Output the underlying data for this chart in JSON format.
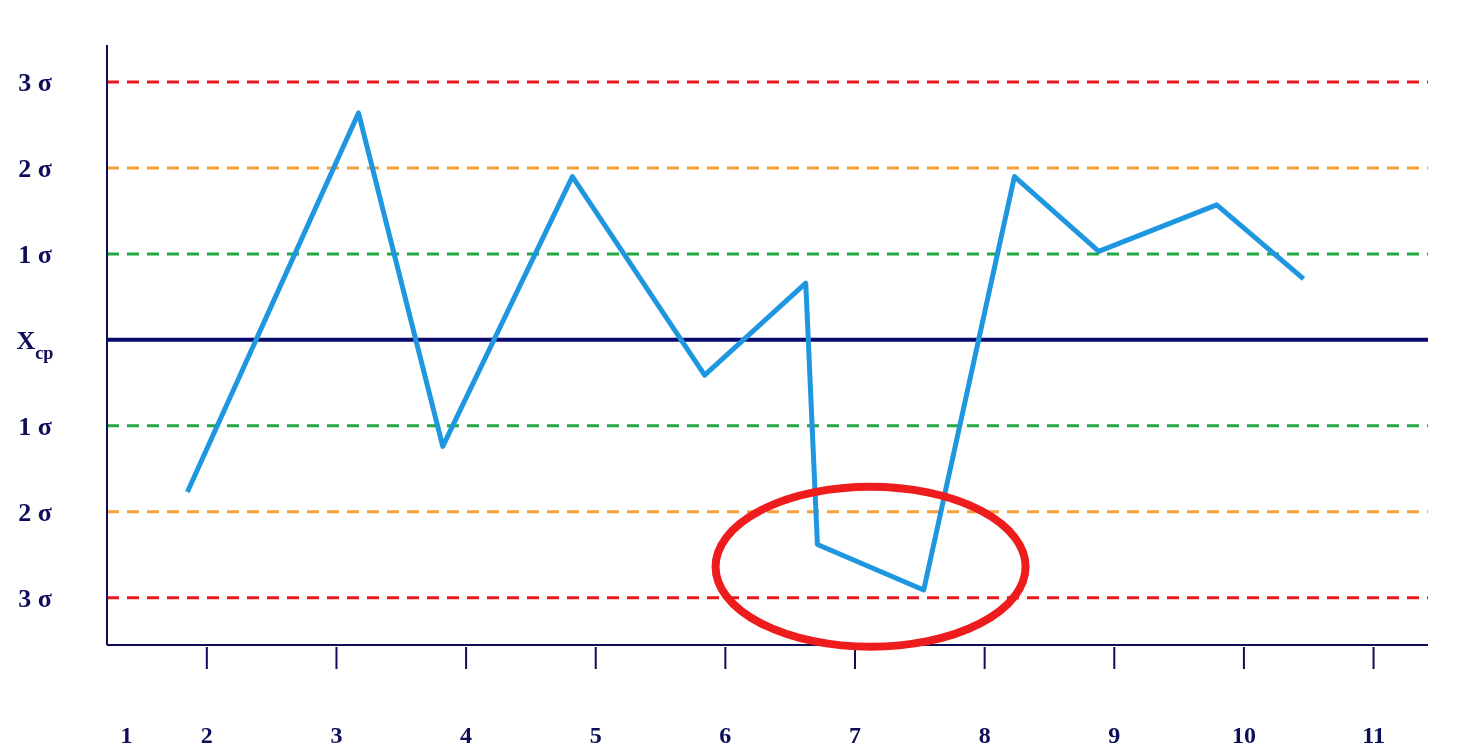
{
  "chart_data": {
    "type": "line",
    "x": [
      1.85,
      3.17,
      3.82,
      4.82,
      5.84,
      6.62,
      6.71,
      7.53,
      8.23,
      8.88,
      9.79,
      10.46
    ],
    "series": [
      {
        "color": "#1e96e0",
        "values": [
          -1.77,
          2.64,
          -1.24,
          1.9,
          -0.41,
          0.66,
          -2.38,
          -2.91,
          1.9,
          1.03,
          1.57,
          0.71
        ]
      }
    ],
    "xlim": [
      1.23,
      11.42
    ],
    "xticks": [
      {
        "value": 1.38,
        "label": "1"
      },
      2,
      3,
      4,
      5,
      6,
      7,
      8,
      9,
      10,
      11
    ],
    "ylim": [
      -3.55,
      3.43
    ],
    "yticks": [
      {
        "value": 3,
        "label": "3 σ"
      },
      {
        "value": 2,
        "label": "2 σ"
      },
      {
        "value": 1,
        "label": "1 σ"
      },
      {
        "value": 0,
        "label": "X$_{cp}$"
      },
      {
        "value": -1,
        "label": "1 σ"
      },
      {
        "value": -2,
        "label": "2 σ"
      },
      {
        "value": -3,
        "label": "3 σ"
      }
    ],
    "ref_lines": [
      {
        "axis": "y",
        "value": 3,
        "color": "#e8191e",
        "line_style": "dashed"
      },
      {
        "axis": "y",
        "value": 2,
        "color": "#f7a03c",
        "line_style": "dashed"
      },
      {
        "axis": "y",
        "value": 1,
        "color": "#22a845",
        "line_style": "dashed"
      },
      {
        "axis": "y",
        "value": 0,
        "color": "#0a0a6e",
        "line_style": "solid"
      },
      {
        "axis": "y",
        "value": -1,
        "color": "#22a845",
        "line_style": "dashed"
      },
      {
        "axis": "y",
        "value": -2,
        "color": "#f7a03c",
        "line_style": "dashed"
      },
      {
        "axis": "y",
        "value": -3,
        "color": "#e8191e",
        "line_style": "dashed"
      }
    ],
    "grid": false,
    "marker": "none",
    "line_style": "solid"
  }
}
